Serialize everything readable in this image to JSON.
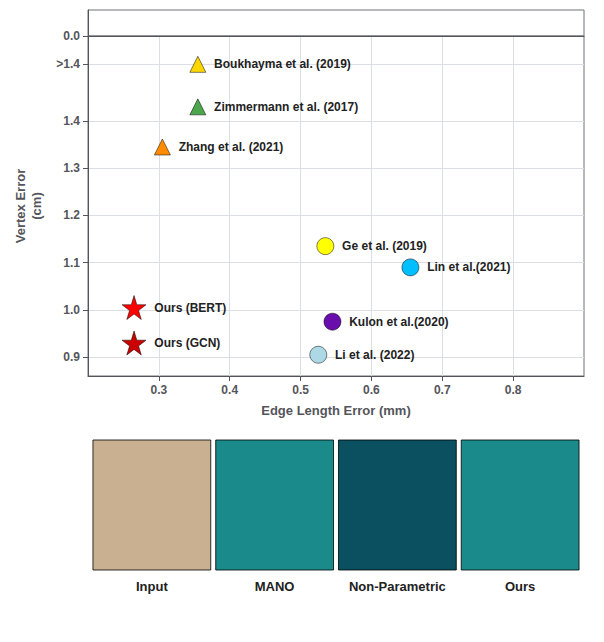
{
  "chart_data": [
    {
      "type": "scatter",
      "xlim": [
        0.2,
        0.9
      ],
      "xticks": [],
      "ylim": [
        0,
        0.08
      ],
      "yticks": [
        {
          "value": 0,
          "label": "0.0"
        }
      ],
      "grid": true,
      "tick_labels": "y"
    },
    {
      "type": "scatter",
      "xlabel": "Edge Length Error (mm)",
      "ylabel": "Vertex Error\n(cm)",
      "xlim": [
        0.2,
        0.9
      ],
      "xticks": [
        0.3,
        0.4,
        0.5,
        0.6,
        0.7,
        0.8
      ],
      "ylim": [
        0.86,
        1.58
      ],
      "yticks": [
        0.9,
        {
          "value": 1,
          "label": "1.0"
        },
        1.1,
        1.2,
        1.3,
        1.4,
        {
          "value": 1.52,
          "label": ">1.4"
        }
      ],
      "grid": true,
      "points": [
        {
          "label": "Boukhayma et al. (2019)",
          "x": 0.355,
          "y": 1.52,
          "color": "#FFD700",
          "marker": "triangle"
        },
        {
          "label": "Zimmermann et al. (2017)",
          "x": 0.355,
          "y": 1.43,
          "color": "#4CA64C",
          "marker": "triangle"
        },
        {
          "label": "Zhang et al. (2021)",
          "x": 0.305,
          "y": 1.345,
          "color": "#FF8C00",
          "marker": "triangle"
        },
        {
          "label": "Ge et al. (2019)",
          "x": 0.535,
          "y": 1.135,
          "color": "#FFFF00",
          "marker": "circle"
        },
        {
          "label": "Lin et al.(2021)",
          "x": 0.655,
          "y": 1.09,
          "color": "#00BFFF",
          "marker": "circle"
        },
        {
          "label": "Kulon et al.(2020)",
          "x": 0.545,
          "y": 0.975,
          "color": "#6A0DAD",
          "marker": "circle"
        },
        {
          "label": "Li et al. (2022)",
          "x": 0.525,
          "y": 0.905,
          "color": "#ADD8E6",
          "marker": "circle"
        },
        {
          "label": "Ours (BERT)",
          "x": 0.265,
          "y": 1.005,
          "color": "#FF0000",
          "marker": "star"
        },
        {
          "label": "Ours (GCN)",
          "x": 0.265,
          "y": 0.93,
          "color": "#CC0000",
          "marker": "star"
        }
      ]
    },
    {
      "type": "images",
      "labels": [
        "Input",
        "MANO",
        "Non-Parametric",
        "Ours"
      ],
      "colors": [
        "#C8B090",
        "#1A8A8A",
        "#0A5060",
        "#1A8A8A"
      ]
    }
  ]
}
